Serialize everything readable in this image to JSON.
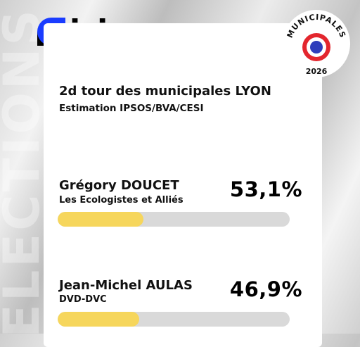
{
  "brand": {
    "logo_text": "ici",
    "logo_color": "#1a3cff"
  },
  "badge": {
    "top_text": "MUNICIPALES",
    "year": "2026",
    "colors": {
      "blue": "#2e3dbb",
      "white": "#ffffff",
      "red": "#e3262e"
    }
  },
  "watermark": "ÉLECTIONS",
  "card": {
    "title": "2d tour des municipales LYON",
    "subtitle": "Estimation IPSOS/BVA/CESI",
    "candidates": [
      {
        "name": "Grégory DOUCET",
        "party": "Les Ecologistes et Alliés",
        "percent": "53,1%",
        "bar_fraction": 0.37
      },
      {
        "name": "Jean-Michel AULAS",
        "party": "DVD-DVC",
        "percent": "46,9%",
        "bar_fraction": 0.35
      }
    ]
  },
  "colors": {
    "bar_fill": "#f6d65c",
    "bar_track": "#d9d9d9"
  }
}
